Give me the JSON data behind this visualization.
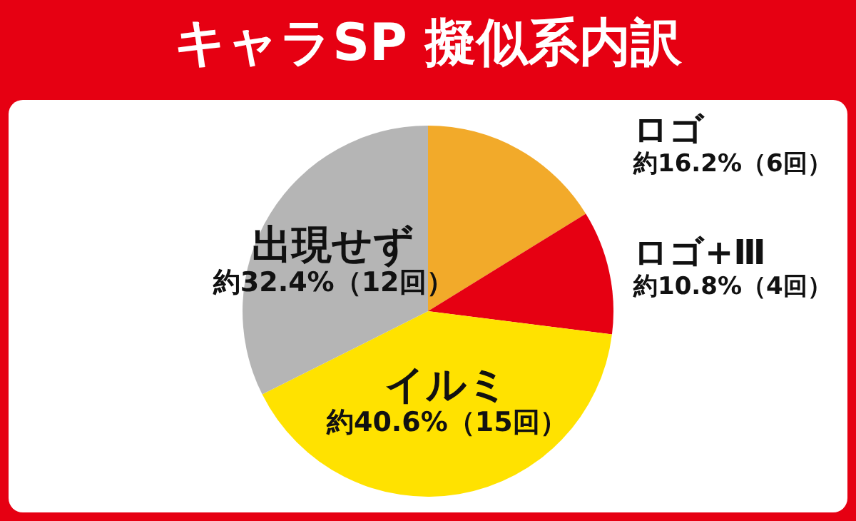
{
  "chart_data": {
    "type": "pie",
    "title": "キャラSP 擬似系内訳",
    "categories": [
      "ロゴ",
      "ロゴ+Ⅲ",
      "イルミ",
      "出現せず"
    ],
    "values": [
      16.2,
      10.8,
      40.6,
      32.4
    ],
    "colors": [
      "#f2aa2a",
      "#e60012",
      "#ffe200",
      "#b5b5b5"
    ],
    "value_labels": [
      "約16.2%（6回）",
      "約10.8%（4回）",
      "約40.6%（15回）",
      "約32.4%（12回）"
    ],
    "legend": false
  }
}
